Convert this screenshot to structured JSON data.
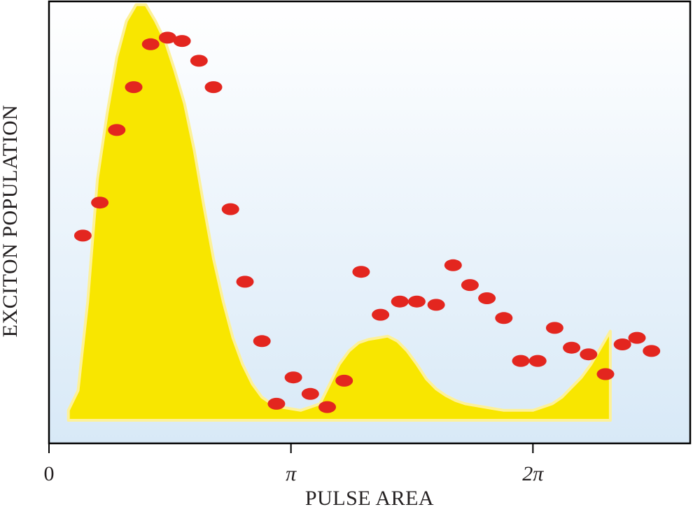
{
  "chart_data": {
    "type": "scatter",
    "xlabel": "PULSE AREA",
    "ylabel": "EXCITON POPULATION",
    "xlim": [
      0,
      2.65
    ],
    "ylim": [
      -0.07,
      1.27
    ],
    "x_ticks": [
      {
        "value": 0,
        "label": "0"
      },
      {
        "value": 1,
        "label": "π"
      },
      {
        "value": 2,
        "label": "2π"
      }
    ],
    "x_unit": "π",
    "grid": false,
    "colors": {
      "background_top": "#ffffff",
      "background_bottom": "#d8e9f7",
      "area_fill": "#f8e600",
      "area_edge": "#fdf199",
      "marker": "#e3261f",
      "axis": "#000000"
    },
    "series": [
      {
        "kind": "area",
        "x": [
          0.08,
          0.12,
          0.16,
          0.2,
          0.24,
          0.28,
          0.32,
          0.36,
          0.4,
          0.44,
          0.48,
          0.52,
          0.56,
          0.6,
          0.64,
          0.68,
          0.72,
          0.76,
          0.8,
          0.84,
          0.88,
          0.92,
          0.96,
          1.0,
          1.04,
          1.08,
          1.12,
          1.16,
          1.2,
          1.24,
          1.28,
          1.32,
          1.36,
          1.4,
          1.44,
          1.48,
          1.52,
          1.56,
          1.6,
          1.64,
          1.68,
          1.72,
          1.76,
          1.8,
          1.84,
          1.88,
          1.92,
          1.96,
          2.0,
          2.04,
          2.08,
          2.12,
          2.16,
          2.2,
          2.24,
          2.28,
          2.32
        ],
        "y": [
          0.03,
          0.09,
          0.36,
          0.73,
          0.93,
          1.1,
          1.21,
          1.26,
          1.26,
          1.21,
          1.15,
          1.06,
          0.96,
          0.82,
          0.65,
          0.49,
          0.36,
          0.25,
          0.17,
          0.11,
          0.07,
          0.05,
          0.04,
          0.035,
          0.03,
          0.04,
          0.05,
          0.11,
          0.17,
          0.21,
          0.235,
          0.245,
          0.25,
          0.255,
          0.24,
          0.21,
          0.17,
          0.125,
          0.095,
          0.075,
          0.06,
          0.05,
          0.045,
          0.04,
          0.035,
          0.03,
          0.03,
          0.03,
          0.03,
          0.04,
          0.05,
          0.07,
          0.1,
          0.13,
          0.17,
          0.22,
          0.27
        ]
      },
      {
        "kind": "scatter",
        "x": [
          0.14,
          0.21,
          0.28,
          0.35,
          0.42,
          0.49,
          0.55,
          0.62,
          0.68,
          0.75,
          0.81,
          0.88,
          0.94,
          1.01,
          1.08,
          1.15,
          1.22,
          1.29,
          1.37,
          1.45,
          1.52,
          1.6,
          1.67,
          1.74,
          1.81,
          1.88,
          1.95,
          2.02,
          2.09,
          2.16,
          2.23,
          2.3,
          2.37,
          2.43,
          2.49
        ],
        "y": [
          0.56,
          0.66,
          0.88,
          1.01,
          1.14,
          1.16,
          1.15,
          1.09,
          1.01,
          0.64,
          0.42,
          0.24,
          0.05,
          0.13,
          0.08,
          0.04,
          0.12,
          0.45,
          0.32,
          0.36,
          0.36,
          0.35,
          0.47,
          0.41,
          0.37,
          0.31,
          0.18,
          0.18,
          0.28,
          0.22,
          0.2,
          0.14,
          0.23,
          0.25,
          0.21
        ]
      }
    ]
  }
}
